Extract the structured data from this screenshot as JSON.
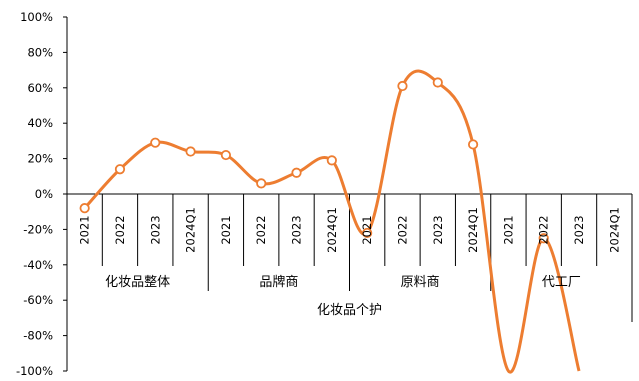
{
  "chart_data": {
    "type": "line",
    "title": "",
    "xlabel": "",
    "ylabel": "",
    "ylim": [
      -1.0,
      1.0
    ],
    "y_ticks": [
      -1.0,
      -0.8,
      -0.6,
      -0.4,
      -0.2,
      0.0,
      0.2,
      0.4,
      0.6,
      0.8,
      1.0
    ],
    "y_tick_labels": [
      "-100%",
      "-80%",
      "-60%",
      "-40%",
      "-20%",
      "0%",
      "20%",
      "40%",
      "60%",
      "80%",
      "100%"
    ],
    "grid": false,
    "legend": false,
    "series_color": "#ED7D31",
    "top_category": "化妆品个护",
    "groups": [
      {
        "name": "化妆品整体",
        "categories": [
          "2021",
          "2022",
          "2023",
          "2024Q1"
        ],
        "values": [
          -0.08,
          0.14,
          0.29,
          0.24
        ]
      },
      {
        "name": "品牌商",
        "categories": [
          "2021",
          "2022",
          "2023",
          "2024Q1"
        ],
        "values": [
          0.22,
          0.06,
          0.12,
          0.19
        ]
      },
      {
        "name": "原料商",
        "categories": [
          "2021",
          "2022",
          "2023",
          "2024Q1"
        ],
        "values": [
          -0.22,
          0.61,
          0.63,
          0.28
        ]
      },
      {
        "name": "代工厂",
        "categories": [
          "2021",
          "2022",
          "2023",
          "2024Q1"
        ],
        "values": [
          -1.0,
          -0.25,
          -1.0,
          null
        ]
      }
    ]
  }
}
